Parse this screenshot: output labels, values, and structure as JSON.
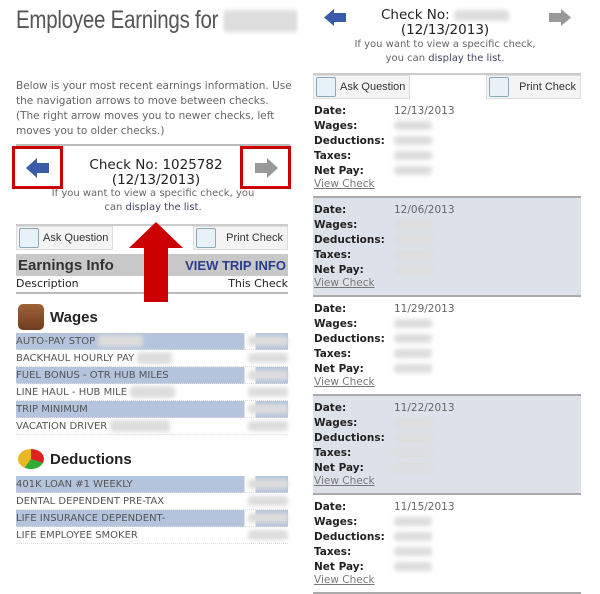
{
  "left": {
    "title": "Employee Earnings for",
    "intro": "Below is your most recent earnings information. Use the navigation arrows to move between checks. (The right arrow moves you to newer checks, left moves you to older checks.)",
    "check_no": "Check No: 1025782",
    "check_date": "(12/13/2013)",
    "hint_prefix": "If you want to view a specific check, you can ",
    "hint_link": "display the list",
    "hint_suffix": ".",
    "ask_question": "Ask Question",
    "print_check": "Print Check",
    "earnings_info": "Earnings Info",
    "view_trip_info": "VIEW TRIP INFO",
    "col_description": "Description",
    "col_this_check": "This Check",
    "wages_title": "Wages",
    "wages": [
      "AUTO-PAY STOP",
      "BACKHAUL HOURLY PAY",
      "FUEL BONUS - OTR HUB MILES",
      "LINE HAUL - HUB MILE",
      "TRIP MINIMUM",
      "VACATION DRIVER"
    ],
    "deductions_title": "Deductions",
    "deductions": [
      "401K LOAN #1 WEEKLY",
      "DENTAL DEPENDENT PRE-TAX",
      "LIFE INSURANCE DEPENDENT-",
      "LIFE EMPLOYEE SMOKER"
    ]
  },
  "right": {
    "check_no": "Check No:",
    "check_date": "(12/13/2013)",
    "hint_prefix": "If you want to view a specific check, you can ",
    "hint_link": "display the list",
    "hint_suffix": ".",
    "ask_question": "Ask Question",
    "print_check": "Print Check",
    "labels": {
      "date": "Date:",
      "wages": "Wages:",
      "deductions": "Deductions:",
      "taxes": "Taxes:",
      "net_pay": "Net Pay:"
    },
    "view_check": "View Check",
    "checks": [
      {
        "date": "12/13/2013"
      },
      {
        "date": "12/06/2013"
      },
      {
        "date": "11/29/2013"
      },
      {
        "date": "11/22/2013"
      },
      {
        "date": "11/15/2013"
      }
    ]
  },
  "colors": {
    "annotation_red": "#cc0000",
    "row_highlight": "#b4c4dc",
    "arrow_blue": "#3a5ba8",
    "link": "#2a3e8c"
  }
}
